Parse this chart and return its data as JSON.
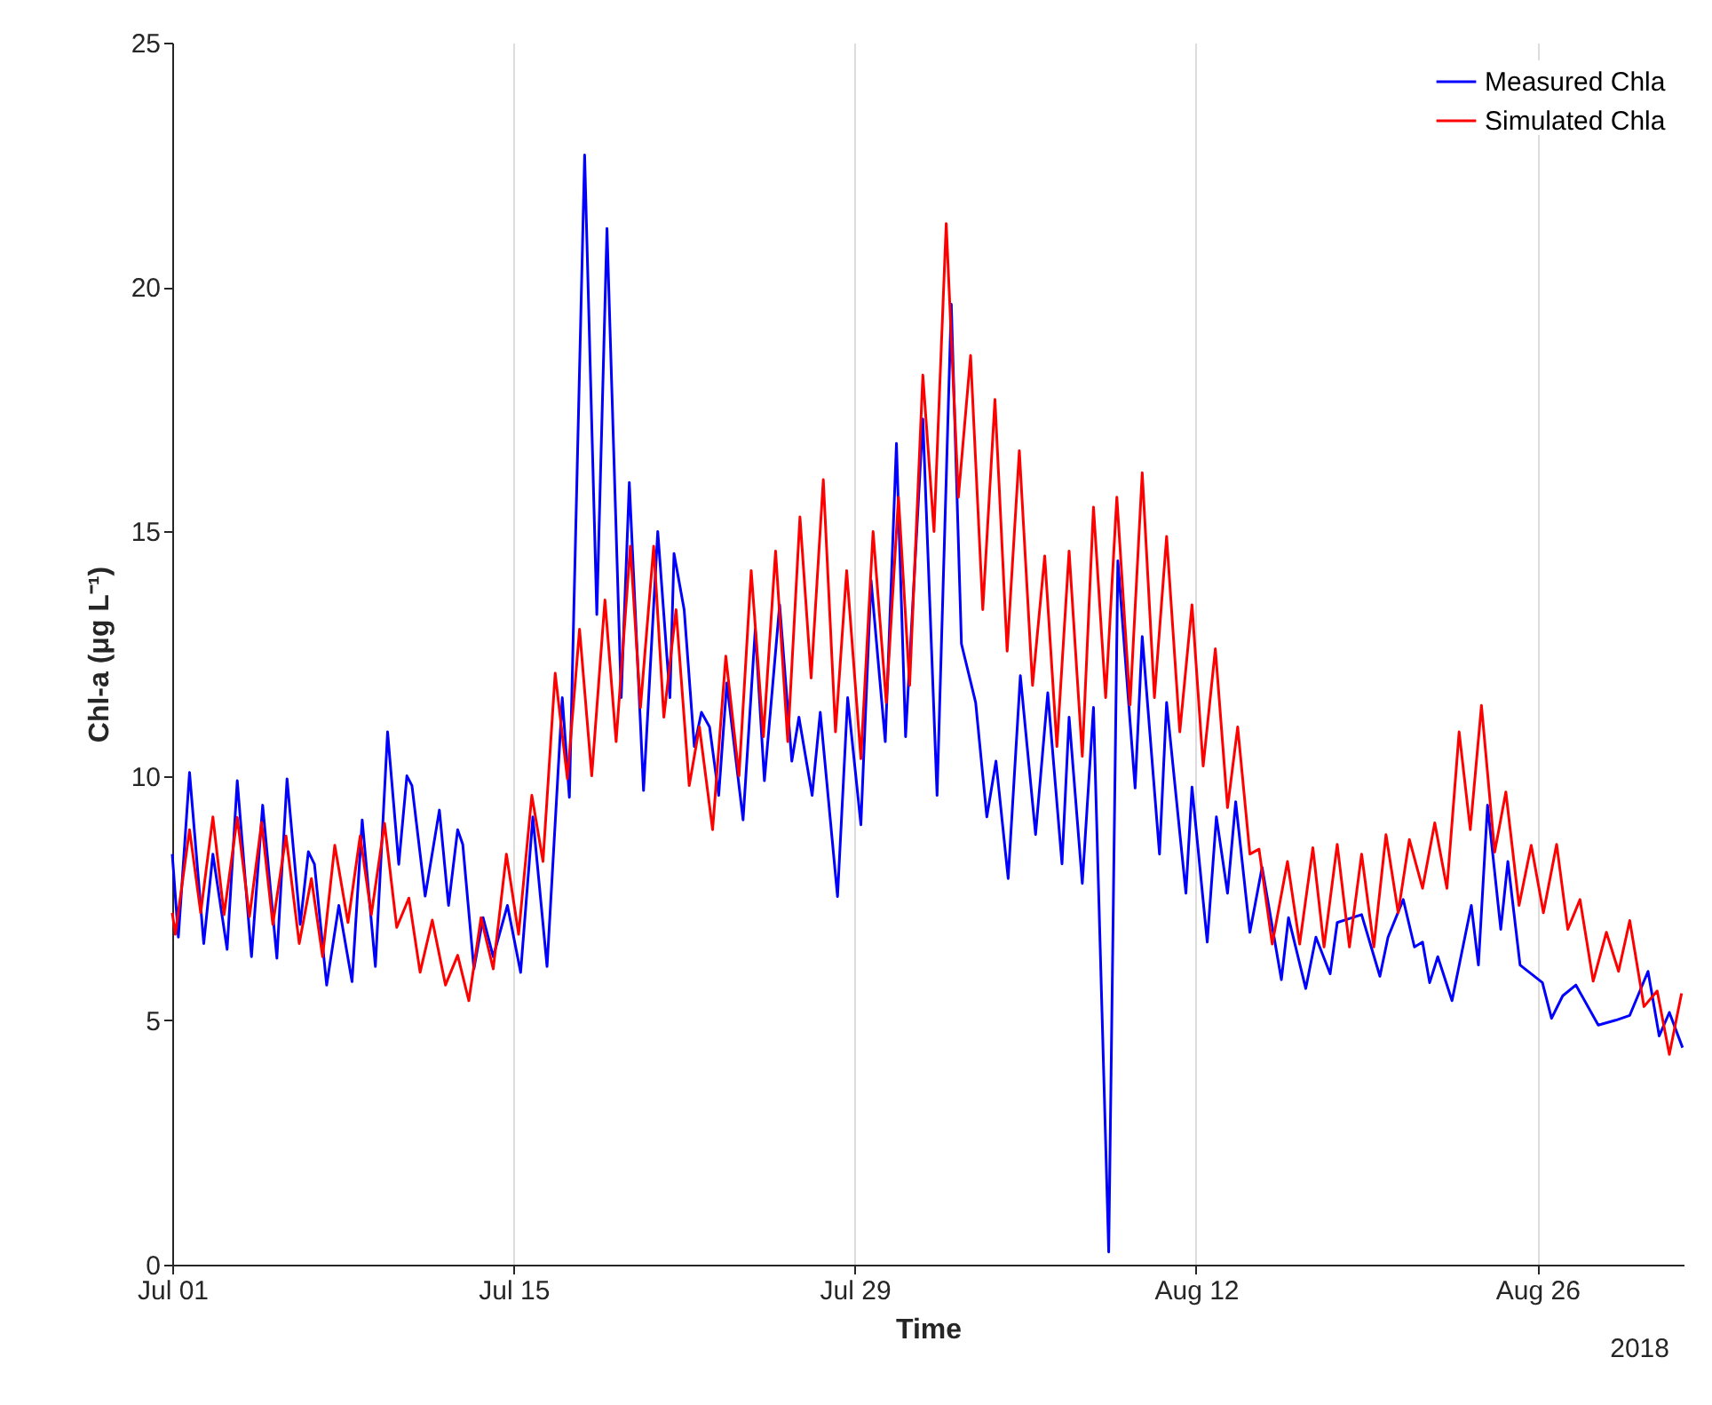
{
  "chart_data": {
    "type": "line",
    "xlabel": "Time",
    "ylabel": "Chl-a (μg L⁻¹)",
    "xlim": [
      "2018-07-01",
      "2018-09-01"
    ],
    "ylim": [
      0,
      25
    ],
    "yticks": [
      0,
      5,
      10,
      15,
      20,
      25
    ],
    "xticks": [
      {
        "value": "2018-07-01",
        "label": "Jul 01"
      },
      {
        "value": "2018-07-15",
        "label": "Jul 15"
      },
      {
        "value": "2018-07-29",
        "label": "Jul 29"
      },
      {
        "value": "2018-08-12",
        "label": "Aug 12"
      },
      {
        "value": "2018-08-26",
        "label": "Aug 26"
      }
    ],
    "grid": "x",
    "legend": "top right",
    "line_style": "solid",
    "marker": "none",
    "annotations": [
      "2018"
    ],
    "series": [
      {
        "name": "Measured Chla",
        "color": "#0000ff",
        "x": [
          "2018-07-01T00:00",
          "2018-07-01T06:00",
          "2018-07-01T17:00",
          "2018-07-02T07:00",
          "2018-07-02T16:00",
          "2018-07-03T06:00",
          "2018-07-03T16:00",
          "2018-07-04T06:00",
          "2018-07-04T17:00",
          "2018-07-05T07:00",
          "2018-07-05T17:00",
          "2018-07-06T06:00",
          "2018-07-06T14:00",
          "2018-07-06T20:00",
          "2018-07-07T08:00",
          "2018-07-07T20:00",
          "2018-07-08T09:00",
          "2018-07-08T19:00",
          "2018-07-09T08:00",
          "2018-07-09T20:00",
          "2018-07-10T07:00",
          "2018-07-10T15:00",
          "2018-07-10T20:00",
          "2018-07-11T09:00",
          "2018-07-11T23:00",
          "2018-07-12T08:00",
          "2018-07-12T17:00",
          "2018-07-12T22:00",
          "2018-07-13T09:00",
          "2018-07-13T18:00",
          "2018-07-14T04:00",
          "2018-07-14T18:00",
          "2018-07-15T07:00",
          "2018-07-15T19:00",
          "2018-07-16T09:00",
          "2018-07-17T00:00",
          "2018-07-17T07:00",
          "2018-07-17T22:00",
          "2018-07-18T10:00",
          "2018-07-18T20:00",
          "2018-07-19T10:00",
          "2018-07-19T18:00",
          "2018-07-20T08:00",
          "2018-07-20T22:00",
          "2018-07-21T10:00",
          "2018-07-21T14:00",
          "2018-07-22T00:00",
          "2018-07-22T10:00",
          "2018-07-22T17:00",
          "2018-07-23T01:00",
          "2018-07-23T10:00",
          "2018-07-23T18:00",
          "2018-07-24T10:00",
          "2018-07-24T22:00",
          "2018-07-25T07:00",
          "2018-07-25T22:00",
          "2018-07-26T10:00",
          "2018-07-26T17:00",
          "2018-07-27T06:00",
          "2018-07-27T14:00",
          "2018-07-28T07:00",
          "2018-07-28T17:00",
          "2018-07-29T06:00",
          "2018-07-29T16:00",
          "2018-07-30T06:00",
          "2018-07-30T17:00",
          "2018-07-31T02:00",
          "2018-07-31T19:00",
          "2018-08-01T09:00",
          "2018-08-01T23:00",
          "2018-08-02T09:00",
          "2018-08-02T23:00",
          "2018-08-03T10:00",
          "2018-08-03T19:00",
          "2018-08-04T07:00",
          "2018-08-04T19:00",
          "2018-08-05T10:00",
          "2018-08-05T22:00",
          "2018-08-06T12:00",
          "2018-08-06T19:00",
          "2018-08-07T08:00",
          "2018-08-07T19:00",
          "2018-08-08T10:00",
          "2018-08-08T19:00",
          "2018-08-09T12:00",
          "2018-08-09T19:00",
          "2018-08-10T12:00",
          "2018-08-10T19:00",
          "2018-08-11T14:00",
          "2018-08-11T20:00",
          "2018-08-12T11:00",
          "2018-08-12T20:00",
          "2018-08-13T07:00",
          "2018-08-13T15:00",
          "2018-08-14T05:00",
          "2018-08-14T17:00",
          "2018-08-15T12:00",
          "2018-08-15T19:00",
          "2018-08-16T12:00",
          "2018-08-16T22:00",
          "2018-08-17T12:00",
          "2018-08-17T19:00",
          "2018-08-18T19:00",
          "2018-08-19T13:00",
          "2018-08-19T21:00",
          "2018-08-20T12:00",
          "2018-08-20T23:00",
          "2018-08-21T07:00",
          "2018-08-21T14:00",
          "2018-08-21T22:00",
          "2018-08-22T12:00",
          "2018-08-23T07:00",
          "2018-08-23T14:00",
          "2018-08-23T23:00",
          "2018-08-24T12:00",
          "2018-08-24T19:00",
          "2018-08-25T07:00",
          "2018-08-26T05:00",
          "2018-08-26T14:00",
          "2018-08-27T01:00",
          "2018-08-27T14:00",
          "2018-08-28T12:00",
          "2018-08-29T05:00",
          "2018-08-29T19:00",
          "2018-08-30T13:00",
          "2018-08-31T00:00",
          "2018-08-31T10:00",
          "2018-08-31T23:00"
        ],
        "values": [
          8.4,
          6.7,
          10.07,
          6.57,
          8.4,
          6.45,
          9.9,
          6.3,
          9.4,
          6.27,
          9.94,
          6.96,
          8.45,
          8.19,
          5.72,
          7.35,
          5.79,
          9.1,
          6.1,
          10.9,
          8.19,
          10.0,
          9.8,
          7.54,
          9.3,
          7.35,
          8.9,
          8.6,
          6.05,
          7.1,
          6.3,
          7.35,
          5.98,
          9.16,
          6.1,
          11.6,
          9.56,
          22.7,
          13.3,
          21.2,
          11.6,
          16.0,
          9.7,
          15.0,
          11.6,
          14.55,
          13.4,
          10.6,
          11.3,
          11.0,
          9.6,
          11.9,
          9.1,
          13.0,
          9.9,
          13.5,
          10.3,
          11.2,
          9.6,
          11.3,
          7.53,
          11.6,
          9.0,
          14.0,
          10.7,
          16.8,
          10.8,
          17.3,
          9.6,
          19.65,
          12.7,
          11.5,
          9.16,
          10.3,
          7.9,
          12.05,
          8.8,
          11.7,
          8.2,
          11.2,
          7.8,
          11.4,
          0.26,
          14.4,
          9.75,
          12.85,
          8.4,
          11.5,
          7.6,
          9.77,
          6.6,
          9.16,
          7.6,
          9.47,
          6.8,
          8.13,
          5.83,
          7.1,
          5.65,
          6.7,
          5.95,
          7.0,
          7.16,
          5.9,
          6.7,
          7.47,
          6.5,
          6.6,
          5.77,
          6.3,
          5.4,
          7.35,
          6.13,
          9.4,
          6.86,
          8.25,
          6.13,
          5.77,
          5.04,
          5.5,
          5.72,
          4.9,
          5.0,
          5.1,
          6.0,
          4.68,
          5.16,
          4.44
        ]
      },
      {
        "name": "Simulated Chla",
        "color": "#ff0000",
        "x": [
          "2018-07-01T00:00",
          "2018-07-01T03:00",
          "2018-07-01T17:00",
          "2018-07-02T04:00",
          "2018-07-02T16:00",
          "2018-07-03T03:00",
          "2018-07-03T16:00",
          "2018-07-04T04:00",
          "2018-07-04T16:00",
          "2018-07-05T03:00",
          "2018-07-05T16:00",
          "2018-07-06T05:00",
          "2018-07-06T17:00",
          "2018-07-07T04:00",
          "2018-07-07T16:00",
          "2018-07-08T05:00",
          "2018-07-08T17:00",
          "2018-07-09T04:00",
          "2018-07-09T17:00",
          "2018-07-10T05:00",
          "2018-07-10T17:00",
          "2018-07-11T04:00",
          "2018-07-11T16:00",
          "2018-07-12T05:00",
          "2018-07-12T17:00",
          "2018-07-13T04:00",
          "2018-07-13T16:00",
          "2018-07-14T04:00",
          "2018-07-14T17:00",
          "2018-07-15T05:00",
          "2018-07-15T18:00",
          "2018-07-16T05:00",
          "2018-07-16T17:00",
          "2018-07-17T05:00",
          "2018-07-17T17:00",
          "2018-07-18T05:00",
          "2018-07-18T18:00",
          "2018-07-19T05:00",
          "2018-07-19T19:00",
          "2018-07-20T05:00",
          "2018-07-20T18:00",
          "2018-07-21T04:00",
          "2018-07-21T16:00",
          "2018-07-22T05:00",
          "2018-07-22T15:00",
          "2018-07-23T04:00",
          "2018-07-23T17:00",
          "2018-07-24T06:00",
          "2018-07-24T18:00",
          "2018-07-25T06:00",
          "2018-07-25T18:00",
          "2018-07-26T06:00",
          "2018-07-26T18:00",
          "2018-07-27T05:00",
          "2018-07-27T17:00",
          "2018-07-28T05:00",
          "2018-07-28T16:00",
          "2018-07-29T06:00",
          "2018-07-29T18:00",
          "2018-07-30T07:00",
          "2018-07-30T19:00",
          "2018-07-31T06:00",
          "2018-07-31T19:00",
          "2018-08-01T06:00",
          "2018-08-01T18:00",
          "2018-08-02T06:00",
          "2018-08-02T18:00",
          "2018-08-03T06:00",
          "2018-08-03T18:00",
          "2018-08-04T06:00",
          "2018-08-04T18:00",
          "2018-08-05T07:00",
          "2018-08-05T19:00",
          "2018-08-06T07:00",
          "2018-08-06T19:00",
          "2018-08-07T08:00",
          "2018-08-07T19:00",
          "2018-08-08T07:00",
          "2018-08-08T18:00",
          "2018-08-09T07:00",
          "2018-08-09T19:00",
          "2018-08-10T07:00",
          "2018-08-10T19:00",
          "2018-08-11T08:00",
          "2018-08-11T20:00",
          "2018-08-12T07:00",
          "2018-08-12T19:00",
          "2018-08-13T07:00",
          "2018-08-13T17:00",
          "2018-08-14T05:00",
          "2018-08-14T14:00",
          "2018-08-15T03:00",
          "2018-08-15T18:00",
          "2018-08-16T06:00",
          "2018-08-16T19:00",
          "2018-08-17T06:00",
          "2018-08-17T19:00",
          "2018-08-18T07:00",
          "2018-08-18T19:00",
          "2018-08-19T07:00",
          "2018-08-19T19:00",
          "2018-08-20T07:00",
          "2018-08-20T18:00",
          "2018-08-21T07:00",
          "2018-08-21T19:00",
          "2018-08-22T07:00",
          "2018-08-22T19:00",
          "2018-08-23T06:00",
          "2018-08-23T17:00",
          "2018-08-24T06:00",
          "2018-08-24T17:00",
          "2018-08-25T06:00",
          "2018-08-25T18:00",
          "2018-08-26T06:00",
          "2018-08-26T19:00",
          "2018-08-27T06:00",
          "2018-08-27T18:00",
          "2018-08-28T07:00",
          "2018-08-28T20:00",
          "2018-08-29T08:00",
          "2018-08-29T19:00",
          "2018-08-30T09:00",
          "2018-08-30T22:00",
          "2018-08-31T10:00",
          "2018-08-31T22:00"
        ],
        "values": [
          7.2,
          6.76,
          8.9,
          7.2,
          9.16,
          7.16,
          9.15,
          7.12,
          9.05,
          6.96,
          8.77,
          6.57,
          7.9,
          6.3,
          8.58,
          7.0,
          8.77,
          7.16,
          9.03,
          6.9,
          7.5,
          5.98,
          7.05,
          5.72,
          6.33,
          5.4,
          7.1,
          6.05,
          8.4,
          6.76,
          9.6,
          8.25,
          12.1,
          9.94,
          13.0,
          10.0,
          13.6,
          10.7,
          14.7,
          11.4,
          14.7,
          11.2,
          13.4,
          9.8,
          11.0,
          8.9,
          12.45,
          10.0,
          14.2,
          10.8,
          14.6,
          10.7,
          15.3,
          12.0,
          16.06,
          10.9,
          14.2,
          10.35,
          15.0,
          11.5,
          15.7,
          11.85,
          18.2,
          15.0,
          21.3,
          15.7,
          18.6,
          13.4,
          17.7,
          12.55,
          16.65,
          11.85,
          14.5,
          10.6,
          14.6,
          10.4,
          15.5,
          11.6,
          15.7,
          11.45,
          16.2,
          11.6,
          14.9,
          10.9,
          13.5,
          10.2,
          12.6,
          9.35,
          11.0,
          8.4,
          8.5,
          6.56,
          8.25,
          6.56,
          8.53,
          6.5,
          8.6,
          6.5,
          8.4,
          6.5,
          8.8,
          7.2,
          8.7,
          7.7,
          9.04,
          7.7,
          10.9,
          8.9,
          11.44,
          8.44,
          9.67,
          7.35,
          8.58,
          7.2,
          8.6,
          6.86,
          7.47,
          5.8,
          6.8,
          6.0,
          7.04,
          5.28,
          5.6,
          4.3,
          5.55
        ]
      }
    ]
  }
}
